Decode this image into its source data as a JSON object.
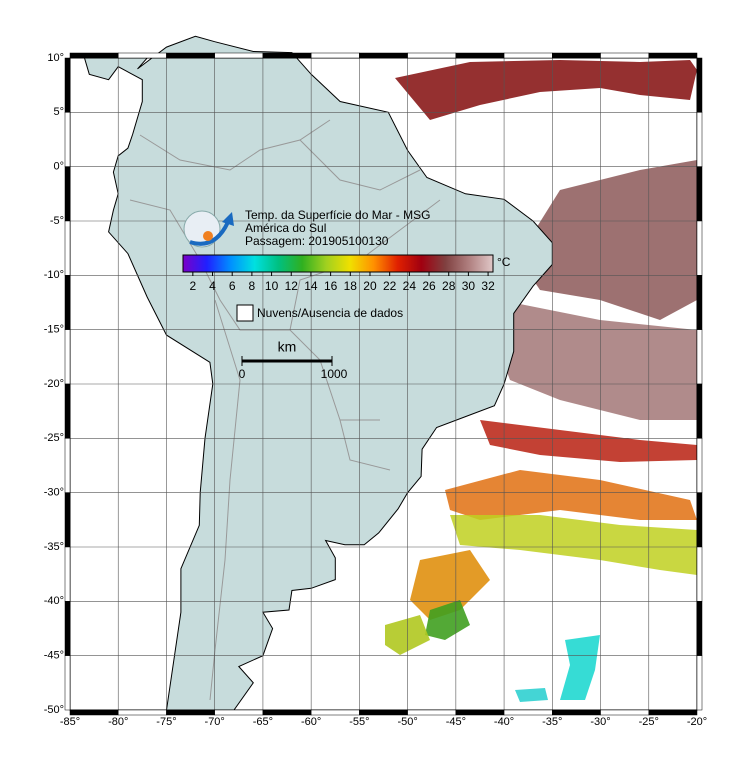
{
  "title": {
    "lines": [
      "Temp. da Superfície do Mar - MSG",
      "América do Sul",
      "Passagem: 201905100130"
    ]
  },
  "colorbar": {
    "range": [
      1,
      32.5
    ],
    "ticks": [
      2,
      4,
      6,
      8,
      10,
      12,
      14,
      16,
      18,
      20,
      22,
      24,
      26,
      28,
      30,
      32
    ],
    "unit": "°C",
    "colors": [
      "#7a00c8",
      "#2020ff",
      "#0090ff",
      "#00e0e0",
      "#00c080",
      "#30b020",
      "#a0d020",
      "#f0e000",
      "#ff9000",
      "#e02000",
      "#a00010",
      "#804040",
      "#b08080",
      "#e0c8c8"
    ]
  },
  "legend": {
    "label": "Nuvens/Ausencia de dados"
  },
  "scale": {
    "unit": "km",
    "start": 0,
    "end": 1000
  },
  "axes": {
    "lat_labels": [
      "10°",
      "5°",
      "0°",
      "-5°",
      "-10°",
      "-15°",
      "-20°",
      "-25°",
      "-30°",
      "-35°",
      "-40°",
      "-45°",
      "-50°"
    ],
    "lon_labels": [
      "-85°",
      "-80°",
      "-75°",
      "-70°",
      "-65°",
      "-60°",
      "-55°",
      "-50°",
      "-45°",
      "-40°",
      "-35°",
      "-30°",
      "-25°",
      "-20°"
    ]
  }
}
